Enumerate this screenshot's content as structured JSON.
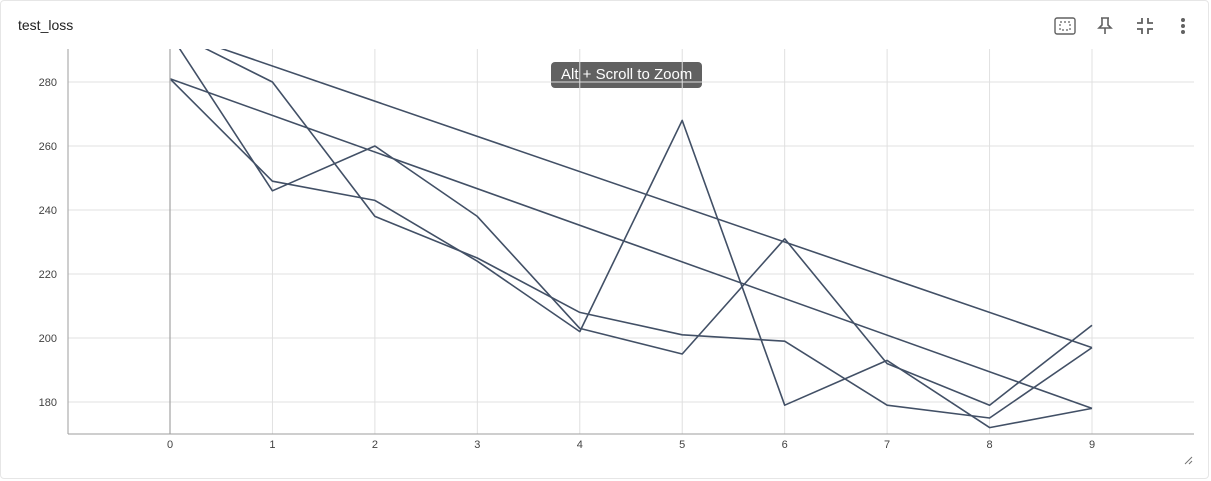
{
  "panel": {
    "title": "test_loss",
    "tooltip": "Alt + Scroll to Zoom",
    "toolbar": [
      "data-selection-icon",
      "pin-icon",
      "fullscreen-exit-icon",
      "more-vert-icon"
    ]
  },
  "colors": {
    "line": "#425066",
    "grid": "#e0e0e0",
    "axis": "#9e9e9e",
    "tick_text": "#424242",
    "tooltip_bg": "#616161"
  },
  "chart_data": {
    "type": "line",
    "title": "test_loss",
    "xlabel": "",
    "ylabel": "",
    "x_ticks": [
      0,
      1,
      2,
      3,
      4,
      5,
      6,
      7,
      8,
      9
    ],
    "y_ticks": [
      180,
      200,
      220,
      240,
      260,
      280
    ],
    "xlim": [
      -1,
      10
    ],
    "ylim": [
      170,
      290
    ],
    "grid": true,
    "series": [
      {
        "x": [
          0,
          9
        ],
        "y": [
          296,
          197
        ]
      },
      {
        "x": [
          0,
          9
        ],
        "y": [
          281,
          178
        ]
      },
      {
        "x": [
          0,
          1,
          2,
          3,
          4,
          5,
          6,
          7,
          8,
          9
        ],
        "y": [
          281,
          249,
          243,
          224,
          202,
          268,
          179,
          193,
          172,
          178
        ]
      },
      {
        "x": [
          0,
          1,
          2,
          3,
          4,
          5,
          6,
          7,
          8,
          9
        ],
        "y": [
          296,
          280,
          238,
          225,
          208,
          201,
          199,
          179,
          175,
          197
        ]
      },
      {
        "x": [
          0,
          1,
          2,
          3,
          4,
          5,
          6,
          7,
          8,
          9
        ],
        "y": [
          295,
          246,
          260,
          238,
          203,
          195,
          231,
          192,
          179,
          204
        ]
      }
    ]
  }
}
